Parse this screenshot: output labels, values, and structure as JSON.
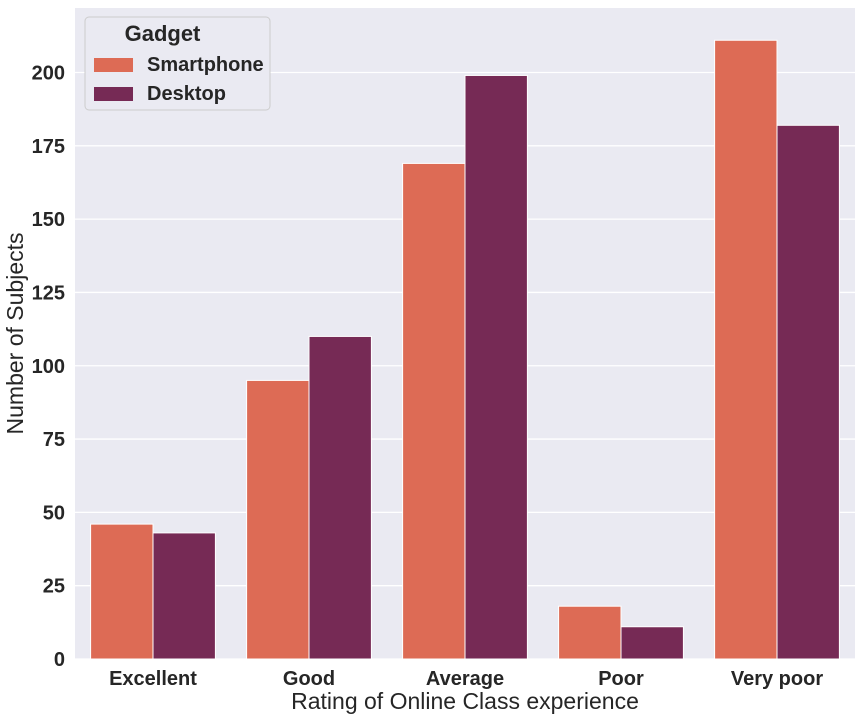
{
  "chart_data": {
    "type": "bar",
    "categories": [
      "Excellent",
      "Good",
      "Average",
      "Poor",
      "Very poor"
    ],
    "series": [
      {
        "name": "Smartphone",
        "color": "#dd6b55",
        "values": [
          46,
          95,
          169,
          18,
          211
        ]
      },
      {
        "name": "Desktop",
        "color": "#762a55",
        "values": [
          43,
          110,
          199,
          11,
          182
        ]
      }
    ],
    "xlabel": "Rating of Online Class experience",
    "ylabel": "Number of Subjects",
    "ylim": [
      0,
      222
    ],
    "yticks": [
      0,
      25,
      50,
      75,
      100,
      125,
      150,
      175,
      200
    ],
    "grid": true,
    "legend": {
      "title": "Gadget",
      "placement": "top-left"
    },
    "background_color": "#eaeaf2",
    "grid_color": "#ffffff"
  }
}
